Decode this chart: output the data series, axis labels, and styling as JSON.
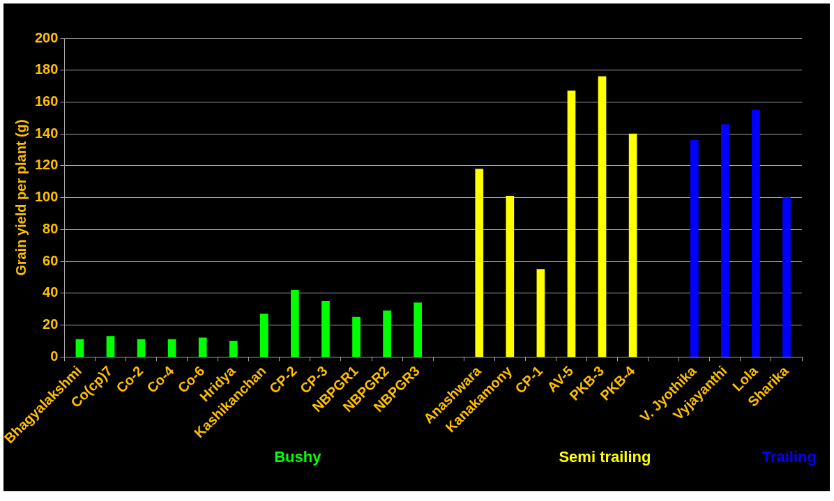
{
  "chart_data": {
    "type": "bar",
    "ylabel": "Grain yield per plant (g)",
    "categories": [
      "Bhagyalakshmi",
      "Co(cp)7",
      "Co-2",
      "Co-4",
      "Co-6",
      "Hridya",
      "Kashikanchan",
      "CP-2",
      "CP-3",
      "NBPGR1",
      "NBPGR2",
      "NBPGR3",
      null,
      "Anashwara",
      "Kanakamony",
      "CP-1",
      "AV-5",
      "PKB-3",
      "PKB-4",
      null,
      "V. Jyothika",
      "Vyjayanthi",
      "Lola",
      "Sharika"
    ],
    "values": [
      11,
      13,
      11,
      11,
      12,
      10,
      27,
      42,
      35,
      25,
      29,
      34,
      null,
      118,
      101,
      55,
      167,
      176,
      140,
      null,
      136,
      146,
      155,
      100
    ],
    "colors": [
      "#00ff00",
      "#00ff00",
      "#00ff00",
      "#00ff00",
      "#00ff00",
      "#00ff00",
      "#00ff00",
      "#00ff00",
      "#00ff00",
      "#00ff00",
      "#00ff00",
      "#00ff00",
      "#00ff00",
      "#ffff00",
      "#ffff00",
      "#ffff00",
      "#ffff00",
      "#ffff00",
      "#ffff00",
      "#ffff00",
      "#0000ff",
      "#0000ff",
      "#0000ff",
      "#0000ff"
    ],
    "ylim": [
      0,
      200
    ],
    "yticks": [
      0,
      20,
      40,
      60,
      80,
      100,
      120,
      140,
      160,
      180,
      200
    ],
    "grid": "y",
    "legend": false,
    "annotations": [
      "Bushy",
      "Semi trailing",
      "Trailing"
    ]
  }
}
